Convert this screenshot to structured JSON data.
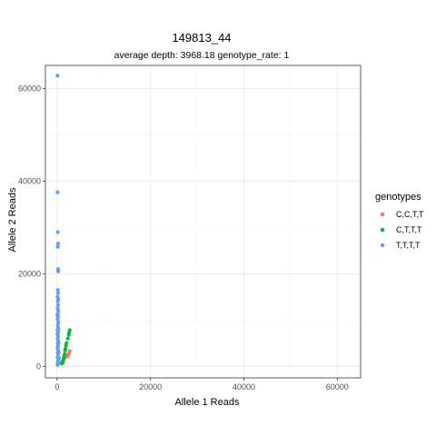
{
  "chart_data": {
    "type": "scatter",
    "title": "149813_44",
    "subtitle": "average depth:  3968.18  genotype_rate:  1",
    "xlabel": "Allele 1 Reads",
    "ylabel": "Allele 2 Reads",
    "xlim": [
      -2500,
      65000
    ],
    "ylim": [
      -2500,
      65000
    ],
    "xticks": [
      0,
      20000,
      40000,
      60000
    ],
    "yticks": [
      0,
      20000,
      40000,
      60000
    ],
    "grid": true,
    "legend": {
      "title": "genotypes",
      "position": "right"
    },
    "series": [
      {
        "name": "C,C,T,T",
        "color": "#F8766D",
        "points": [
          [
            2300,
            2200
          ],
          [
            2500,
            2700
          ],
          [
            2700,
            3300
          ],
          [
            1900,
            2000
          ],
          [
            2100,
            2400
          ]
        ]
      },
      {
        "name": "C,T,T,T",
        "color": "#00BA38",
        "points": [
          [
            1200,
            800
          ],
          [
            1400,
            1600
          ],
          [
            1500,
            2100
          ],
          [
            1700,
            3400
          ],
          [
            1800,
            3800
          ],
          [
            1900,
            4500
          ],
          [
            2000,
            5000
          ],
          [
            2300,
            6000
          ],
          [
            2500,
            6800
          ],
          [
            2600,
            7300
          ],
          [
            2700,
            7800
          ],
          [
            1000,
            600
          ],
          [
            1300,
            1200
          ],
          [
            1600,
            2600
          ],
          [
            1100,
            1000
          ]
        ]
      },
      {
        "name": "T,T,T,T",
        "color": "#619CFF",
        "points": [
          [
            100,
            62800
          ],
          [
            100,
            37600
          ],
          [
            150,
            29000
          ],
          [
            200,
            26500
          ],
          [
            150,
            25800
          ],
          [
            200,
            21000
          ],
          [
            250,
            20500
          ],
          [
            150,
            16500
          ],
          [
            200,
            15800
          ],
          [
            100,
            15000
          ],
          [
            250,
            14500
          ],
          [
            150,
            14000
          ],
          [
            200,
            13200
          ],
          [
            100,
            12500
          ],
          [
            250,
            12000
          ],
          [
            150,
            11400
          ],
          [
            200,
            10800
          ],
          [
            100,
            10200
          ],
          [
            250,
            9600
          ],
          [
            150,
            9000
          ],
          [
            200,
            8400
          ],
          [
            100,
            7900
          ],
          [
            250,
            7400
          ],
          [
            150,
            6900
          ],
          [
            200,
            6400
          ],
          [
            100,
            5900
          ],
          [
            250,
            5400
          ],
          [
            150,
            4900
          ],
          [
            200,
            4400
          ],
          [
            100,
            3900
          ],
          [
            250,
            3400
          ],
          [
            150,
            2900
          ],
          [
            200,
            2400
          ],
          [
            100,
            1900
          ],
          [
            250,
            1500
          ],
          [
            150,
            1000
          ],
          [
            200,
            600
          ],
          [
            100,
            300
          ],
          [
            300,
            5000
          ],
          [
            300,
            8000
          ],
          [
            350,
            3000
          ],
          [
            50,
            11000
          ],
          [
            400,
            1800
          ],
          [
            300,
            700
          ],
          [
            50,
            7000
          ]
        ]
      }
    ]
  }
}
